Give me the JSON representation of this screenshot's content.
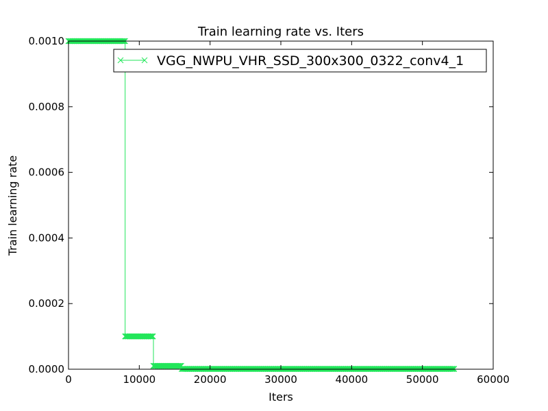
{
  "chart_data": {
    "type": "line",
    "title": "Train learning rate  vs. Iters",
    "xlabel": "Iters",
    "ylabel": "Train learning rate",
    "xlim": [
      0,
      60000
    ],
    "ylim": [
      0,
      0.001
    ],
    "xticks": [
      0,
      10000,
      20000,
      30000,
      40000,
      50000,
      60000
    ],
    "xtick_labels": [
      "0",
      "10000",
      "20000",
      "30000",
      "40000",
      "50000",
      "60000"
    ],
    "yticks": [
      0,
      0.0002,
      0.0004,
      0.0006,
      0.0008,
      0.001
    ],
    "ytick_labels": [
      "0.0000",
      "0.0002",
      "0.0004",
      "0.0006",
      "0.0008",
      "0.0010"
    ],
    "grid": false,
    "legend_position": "top-right",
    "series": [
      {
        "name": "VGG_NWPU_VHR_SSD_300x300_0322_conv4_1",
        "color": "#22e65a",
        "marker": "x",
        "segments": [
          {
            "x_start": 0,
            "x_end": 8000,
            "value": 0.001
          },
          {
            "x_start": 8000,
            "x_end": 12000,
            "value": 0.0001
          },
          {
            "x_start": 12000,
            "x_end": 16000,
            "value": 1e-05
          },
          {
            "x_start": 16000,
            "x_end": 54500,
            "value": 1e-06
          }
        ]
      }
    ]
  }
}
